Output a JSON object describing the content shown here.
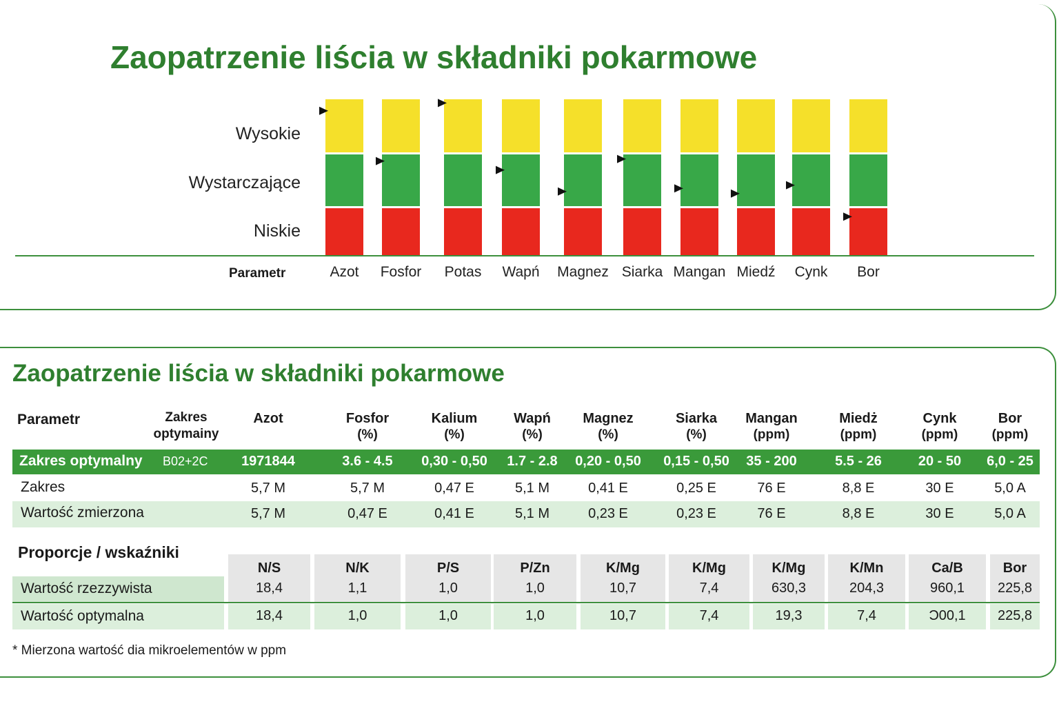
{
  "chart_title": "Zaopatrzenie liścia w składniki pokarmowe",
  "chart_data": {
    "type": "bar",
    "title": "Zaopatrzenie liścia w składniki pokarmowe",
    "levels": [
      "Wysokie",
      "Wystarczające",
      "Niskie"
    ],
    "level_colors": {
      "Wysokie": "#f5e02a",
      "Wystarczające": "#38a848",
      "Niskie": "#e8281e"
    },
    "xlabel": "Parametr",
    "categories": [
      "Azot",
      "Fosfor",
      "Potas",
      "Wapń",
      "Magnez",
      "Siarka",
      "Mangan",
      "Miedź",
      "Cynk",
      "Bor"
    ],
    "marker_levels": [
      2.78,
      1.82,
      2.93,
      1.65,
      1.24,
      1.86,
      1.3,
      1.2,
      1.36,
      0.76
    ],
    "ylim": [
      0,
      3
    ]
  },
  "table": {
    "title": "Zaopatrzenie liścia w składniki pokarmowe",
    "header": {
      "param": "Parametr",
      "range_line1": "Zakres",
      "range_line2": "optymainy",
      "columns": [
        {
          "name": "Azot",
          "unit": ""
        },
        {
          "name": "Fosfor",
          "unit": "(%)"
        },
        {
          "name": "Kalium",
          "unit": "(%)"
        },
        {
          "name": "Wapń",
          "unit": "(%)"
        },
        {
          "name": "Magnez",
          "unit": "(%)"
        },
        {
          "name": "Siarka",
          "unit": "(%)"
        },
        {
          "name": "Mangan",
          "unit": "(ppm)"
        },
        {
          "name": "Miedż",
          "unit": "(ppm)"
        },
        {
          "name": "Cynk",
          "unit": "(ppm)"
        },
        {
          "name": "Bor",
          "unit": "(ppm)"
        }
      ]
    },
    "rows": [
      {
        "label": "Zakres optymalny",
        "extra": "B02+2C",
        "values": [
          "1971844",
          "3.6 -  4.5",
          "0,30 - 0,50",
          "1.7 - 2.8",
          "0,20 - 0,50",
          "0,15 - 0,50",
          "35 - 200",
          "5.5 - 26",
          "20 - 50",
          "6,0 - 25"
        ]
      },
      {
        "label": "Zakres",
        "extra": "",
        "values": [
          "5,7 M",
          "5,7 M",
          "0,47 E",
          "5,1 M",
          "0,41 E",
          "0,25 E",
          "76 E",
          "8,8 E",
          "30 E",
          "5,0 A"
        ]
      },
      {
        "label": "Wartość zmierzona",
        "extra": "",
        "values": [
          "5,7 M",
          "0,47 E",
          "0,41 E",
          "5,1 M",
          "0,23 E",
          "0,23 E",
          "76 E",
          "8,8 E",
          "30 E",
          "5,0 A"
        ]
      }
    ]
  },
  "ratios": {
    "title": "Proporcje / wskaźniki",
    "headers": [
      "N/S",
      "N/K",
      "P/S",
      "P/Zn",
      "K/Mg",
      "K/Mg",
      "K/Mg",
      "K/Mn",
      "Ca/B",
      "Bor"
    ],
    "rows": [
      {
        "label": "Wartość rzezzywista",
        "values": [
          "18,4",
          "1,1",
          "1,0",
          "1,0",
          "10,7",
          "7,4",
          "630,3",
          "204,3",
          "960,1",
          "225,8"
        ]
      },
      {
        "label": "Wartość optymalna",
        "values": [
          "18,4",
          "1,0",
          "1,0",
          "1,0",
          "10,7",
          "7,4",
          "19,3",
          "7,4",
          "Ͻ00,1",
          "225,8"
        ]
      }
    ]
  },
  "footnote": "* Mierzona wartość dia mikroelementów w ppm",
  "colors": {
    "brand_green": "#2f7f2f",
    "row_green": "#3a9a3a",
    "light_green": "#dcefdc"
  }
}
